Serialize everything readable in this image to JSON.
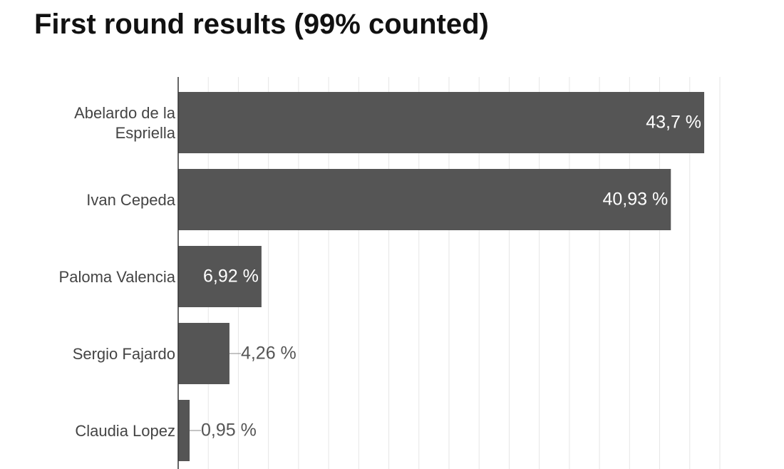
{
  "chart_data": {
    "type": "bar",
    "orientation": "horizontal",
    "title": "First round results (99% counted)",
    "categories": [
      "Abelardo de la Espriella",
      "Ivan Cepeda",
      "Paloma Valencia",
      "Sergio Fajardo",
      "Claudia Lopez"
    ],
    "values": [
      43.7,
      40.93,
      6.92,
      4.26,
      0.95
    ],
    "value_labels": [
      "43,7 %",
      "40,93 %",
      "6,92 %",
      "4,26 %",
      "0,95 %"
    ],
    "color": "#555555",
    "xlim": [
      0,
      45
    ],
    "xticks": [
      0,
      2.5,
      5,
      7.5,
      10,
      12.5,
      15,
      17.5,
      20,
      22.5,
      25,
      27.5,
      30,
      32.5,
      35,
      37.5,
      40,
      42.5,
      45
    ],
    "grid": true
  }
}
